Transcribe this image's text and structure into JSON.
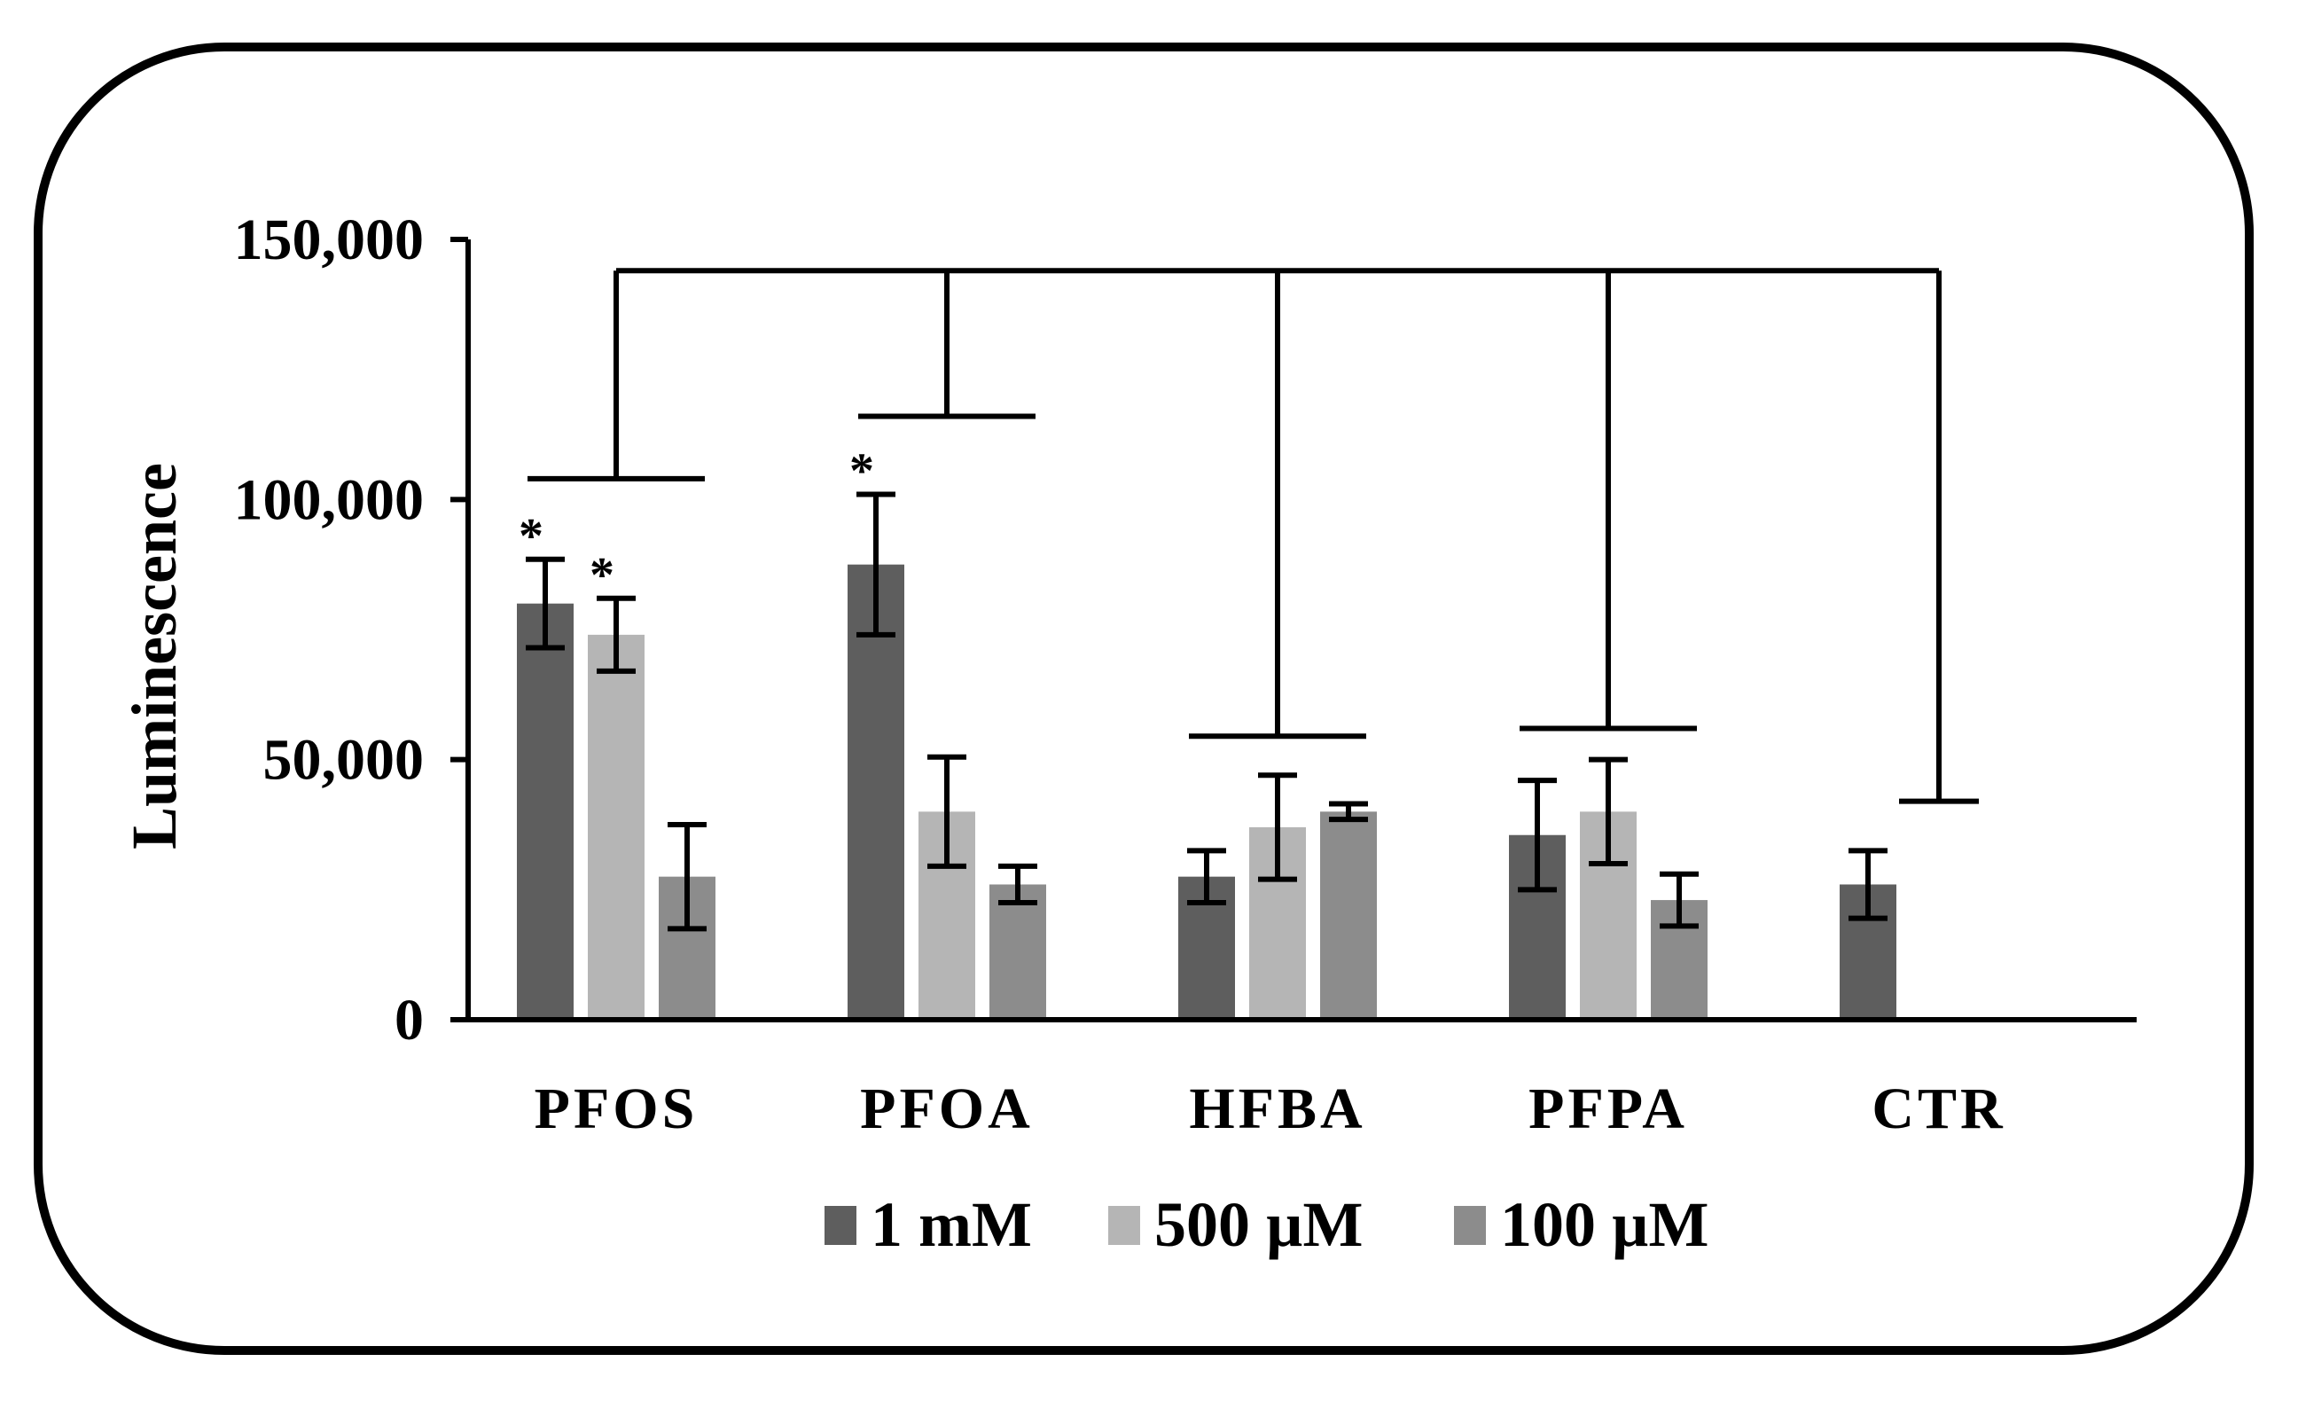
{
  "chart_data": {
    "type": "bar",
    "title": "",
    "xlabel": "",
    "ylabel": "Luminescence",
    "ylim": [
      0,
      150000
    ],
    "yticks": [
      0,
      50000,
      100000,
      150000
    ],
    "ytick_labels": [
      "0",
      "50,000",
      "100,000",
      "150,000"
    ],
    "categories": [
      "PFOS",
      "PFOA",
      "HFBA",
      "PFPA",
      "CTR"
    ],
    "series": [
      {
        "name": "1 mM",
        "color": "#5e5e5e",
        "values": [
          80000,
          87500,
          27500,
          35500,
          26000
        ],
        "errors": [
          8500,
          13500,
          5000,
          10500,
          6500
        ],
        "significant": [
          true,
          true,
          false,
          false,
          false
        ]
      },
      {
        "name": "500 µM",
        "color": "#b5b5b5",
        "values": [
          74000,
          40000,
          37000,
          40000,
          null
        ],
        "errors": [
          7000,
          10500,
          10000,
          10000,
          null
        ],
        "significant": [
          true,
          false,
          false,
          false,
          false
        ]
      },
      {
        "name": "100 µM",
        "color": "#8c8c8c",
        "values": [
          27500,
          26000,
          40000,
          23000,
          null
        ],
        "errors": [
          10000,
          3500,
          1500,
          5000,
          null
        ],
        "significant": [
          false,
          false,
          false,
          false,
          false
        ]
      }
    ],
    "significance_marker": "*",
    "comparison_bracket": {
      "reference": "CTR",
      "top_value": 144000,
      "group_caps": [
        104000,
        116000,
        54500,
        56000,
        42000
      ]
    },
    "legend_position": "bottom",
    "grid": false
  }
}
